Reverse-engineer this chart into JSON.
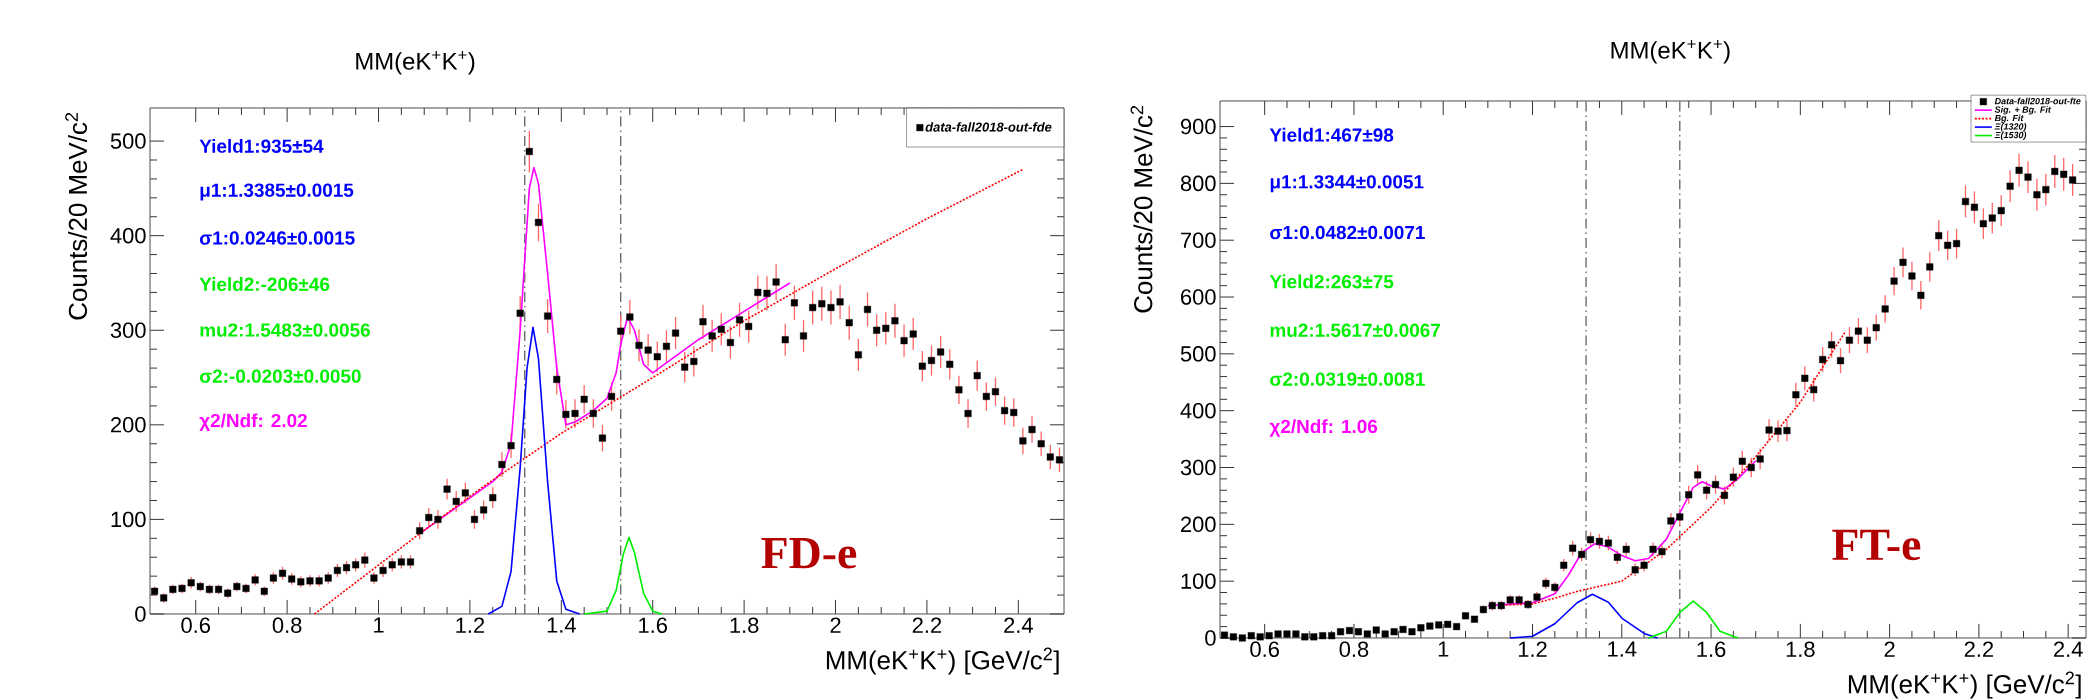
{
  "chart_data": [
    {
      "type": "scatter",
      "title": "MM(eK$^{+}$K$^{+}$)",
      "xlabel": "MM(eK$^{+}$K$^{+}$) [GeV/c$^{2}$]",
      "ylabel": "Counts/20 MeV/c$^{2}$",
      "annotations": [
        "Yield1:935±54",
        "μ1:1.3385±0.0015",
        "σ1:0.0246±0.0015",
        "Yield2:-206±46",
        "mu2:1.5483±0.0056",
        "σ2:-0.0203±0.0050",
        "χ2/Ndf: 2.02",
        "FD-e"
      ],
      "xlim": [
        0.5,
        2.5
      ],
      "ylim": [
        0,
        535
      ],
      "xticks": [
        0.6,
        0.8,
        1,
        1.2,
        1.4,
        1.6,
        1.8,
        2,
        2.2,
        2.4
      ],
      "yticks": [
        0,
        100,
        200,
        300,
        400,
        500
      ],
      "legend": "top right",
      "ref_lines": [
        {
          "axis": "x",
          "value": 1.32,
          "color": "#555555",
          "line_style": "dashed"
        },
        {
          "axis": "x",
          "value": 1.53,
          "color": "#555555",
          "line_style": "dashed"
        }
      ],
      "series": [
        {
          "name": "data-fall2018-out-fde",
          "color": "#000000",
          "marker": "square",
          "x": [
            0.51,
            0.53,
            0.55,
            0.57,
            0.59,
            0.61,
            0.63,
            0.65,
            0.67,
            0.69,
            0.71,
            0.73,
            0.75,
            0.77,
            0.79,
            0.81,
            0.83,
            0.85,
            0.87,
            0.89,
            0.91,
            0.93,
            0.95,
            0.97,
            0.99,
            1.01,
            1.03,
            1.05,
            1.07,
            1.09,
            1.11,
            1.13,
            1.15,
            1.17,
            1.19,
            1.21,
            1.23,
            1.25,
            1.27,
            1.29,
            1.31,
            1.33,
            1.35,
            1.37,
            1.39,
            1.41,
            1.43,
            1.45,
            1.47,
            1.49,
            1.51,
            1.53,
            1.55,
            1.57,
            1.59,
            1.61,
            1.63,
            1.65,
            1.67,
            1.69,
            1.71,
            1.73,
            1.75,
            1.77,
            1.79,
            1.81,
            1.83,
            1.85,
            1.87,
            1.89,
            1.91,
            1.93,
            1.95,
            1.97,
            1.99,
            2.01,
            2.03,
            2.05,
            2.07,
            2.09,
            2.11,
            2.13,
            2.15,
            2.17,
            2.19,
            2.21,
            2.23,
            2.25,
            2.27,
            2.29,
            2.31,
            2.33,
            2.35,
            2.37,
            2.39,
            2.41,
            2.43,
            2.45,
            2.47,
            2.49
          ],
          "values": [
            24,
            17,
            26,
            27,
            33,
            29,
            26,
            26,
            22,
            29,
            27,
            36,
            24,
            38,
            43,
            37,
            34,
            35,
            35,
            38,
            46,
            49,
            52,
            57,
            38,
            46,
            52,
            55,
            55,
            88,
            102,
            100,
            132,
            119,
            128,
            100,
            110,
            123,
            158,
            178,
            318,
            489,
            414,
            315,
            248,
            211,
            212,
            227,
            212,
            186,
            230,
            299,
            314,
            284,
            279,
            272,
            283,
            297,
            261,
            267,
            309,
            294,
            301,
            287,
            311,
            304,
            340,
            339,
            351,
            290,
            329,
            294,
            324,
            328,
            324,
            330,
            308,
            274,
            322,
            300,
            302,
            310,
            289,
            296,
            262,
            268,
            277,
            264,
            237,
            212,
            252,
            230,
            235,
            215,
            213,
            183,
            195,
            180,
            166,
            163
          ],
          "errors": [
            5,
            5,
            5,
            5,
            6,
            5,
            5,
            5,
            5,
            5,
            5,
            6,
            5,
            6,
            7,
            6,
            6,
            6,
            6,
            6,
            7,
            7,
            7,
            8,
            6,
            7,
            7,
            7,
            7,
            9,
            10,
            10,
            11,
            11,
            11,
            10,
            10,
            11,
            13,
            13,
            18,
            22,
            20,
            18,
            16,
            15,
            15,
            15,
            15,
            14,
            15,
            17,
            18,
            17,
            17,
            16,
            17,
            17,
            16,
            16,
            18,
            17,
            17,
            17,
            18,
            17,
            18,
            18,
            19,
            17,
            18,
            17,
            18,
            18,
            18,
            18,
            18,
            17,
            18,
            17,
            17,
            18,
            17,
            17,
            16,
            16,
            17,
            16,
            15,
            15,
            16,
            15,
            15,
            15,
            15,
            14,
            14,
            13,
            13,
            13
          ]
        },
        {
          "type": "line",
          "color": "#ff00ff",
          "line_style": "solid",
          "x": [
            1.09,
            1.25,
            1.27,
            1.29,
            1.31,
            1.33,
            1.34,
            1.35,
            1.37,
            1.39,
            1.41,
            1.43,
            1.47,
            1.5,
            1.52,
            1.53,
            1.545,
            1.56,
            1.58,
            1.6,
            1.62,
            1.7,
            1.8,
            1.9
          ],
          "values": [
            85,
            140,
            150,
            180,
            300,
            450,
            472,
            455,
            360,
            260,
            200,
            203,
            215,
            228,
            255,
            285,
            314,
            300,
            264,
            255,
            262,
            290,
            320,
            350
          ]
        },
        {
          "type": "line",
          "color": "#ff0000",
          "line_style": "dotted",
          "x": [
            0.86,
            1.09,
            1.23,
            1.4,
            1.6,
            1.8,
            2.0,
            2.2,
            2.41
          ],
          "values": [
            0,
            85,
            135,
            191,
            250,
            310,
            365,
            418,
            470
          ]
        },
        {
          "type": "line",
          "color": "#0000ff",
          "line_style": "solid",
          "x": [
            1.24,
            1.27,
            1.29,
            1.31,
            1.325,
            1.338,
            1.35,
            1.37,
            1.39,
            1.41,
            1.44
          ],
          "values": [
            0,
            8,
            45,
            155,
            260,
            303,
            270,
            140,
            35,
            5,
            0
          ]
        },
        {
          "type": "line",
          "color": "#00ee00",
          "line_style": "solid",
          "x": [
            1.45,
            1.5,
            1.52,
            1.535,
            1.548,
            1.56,
            1.58,
            1.6,
            1.62
          ],
          "values": [
            0,
            3,
            25,
            62,
            81,
            65,
            22,
            3,
            0
          ]
        }
      ]
    },
    {
      "type": "scatter",
      "title": "MM(eK$^{+}$K$^{+}$)",
      "xlabel": "MM(eK$^{+}$K$^{+}$) [GeV/c$^{2}$]",
      "ylabel": "Counts/20 MeV/c$^{2}$",
      "annotations": [
        "Yield1:467±98",
        "μ1:1.3344±0.0051",
        "σ1:0.0482±0.0071",
        "Yield2:263±75",
        "mu2:1.5617±0.0067",
        "σ2:0.0319±0.0081",
        "χ2/Ndf: 1.06",
        "FT-e"
      ],
      "xlim": [
        0.5,
        2.44
      ],
      "ylim": [
        0,
        945
      ],
      "xticks": [
        0.6,
        0.8,
        1,
        1.2,
        1.4,
        1.6,
        1.8,
        2,
        2.2,
        2.4
      ],
      "yticks": [
        0,
        100,
        200,
        300,
        400,
        500,
        600,
        700,
        800,
        900
      ],
      "legend": "top right",
      "ref_lines": [
        {
          "axis": "x",
          "value": 1.32,
          "color": "#555555",
          "line_style": "dashed"
        },
        {
          "axis": "x",
          "value": 1.53,
          "color": "#555555",
          "line_style": "dashed"
        }
      ],
      "series": [
        {
          "name": "Data-fall2018-out-fte",
          "color": "#000000",
          "marker": "square",
          "x": [
            0.51,
            0.53,
            0.55,
            0.57,
            0.59,
            0.61,
            0.63,
            0.65,
            0.67,
            0.69,
            0.71,
            0.73,
            0.75,
            0.77,
            0.79,
            0.81,
            0.83,
            0.85,
            0.87,
            0.89,
            0.91,
            0.93,
            0.95,
            0.97,
            0.99,
            1.01,
            1.03,
            1.05,
            1.07,
            1.09,
            1.11,
            1.13,
            1.15,
            1.17,
            1.19,
            1.21,
            1.23,
            1.25,
            1.27,
            1.29,
            1.31,
            1.33,
            1.35,
            1.37,
            1.39,
            1.41,
            1.43,
            1.45,
            1.47,
            1.49,
            1.51,
            1.53,
            1.55,
            1.57,
            1.59,
            1.61,
            1.63,
            1.65,
            1.67,
            1.69,
            1.71,
            1.73,
            1.75,
            1.77,
            1.79,
            1.81,
            1.83,
            1.85,
            1.87,
            1.89,
            1.91,
            1.93,
            1.95,
            1.97,
            1.99,
            2.01,
            2.03,
            2.05,
            2.07,
            2.09,
            2.11,
            2.13,
            2.15,
            2.17,
            2.19,
            2.21,
            2.23,
            2.25,
            2.27,
            2.29,
            2.31,
            2.33,
            2.35,
            2.37,
            2.39,
            2.41
          ],
          "values": [
            5,
            2,
            0,
            4,
            2,
            4,
            7,
            7,
            7,
            2,
            2,
            4,
            4,
            11,
            13,
            11,
            7,
            14,
            7,
            11,
            15,
            11,
            18,
            21,
            23,
            24,
            20,
            39,
            33,
            50,
            57,
            57,
            67,
            67,
            59,
            72,
            96,
            89,
            128,
            158,
            147,
            173,
            170,
            167,
            142,
            156,
            120,
            128,
            156,
            152,
            206,
            213,
            252,
            287,
            260,
            270,
            251,
            283,
            311,
            300,
            315,
            366,
            364,
            365,
            428,
            457,
            437,
            490,
            516,
            488,
            524,
            540,
            524,
            546,
            579,
            628,
            661,
            637,
            603,
            653,
            708,
            691,
            694,
            768,
            758,
            729,
            739,
            752,
            795,
            823,
            811,
            780,
            789,
            821,
            816,
            806
          ],
          "errors": [
            null,
            null,
            null,
            null,
            null,
            null,
            null,
            null,
            null,
            null,
            null,
            null,
            null,
            null,
            null,
            null,
            null,
            null,
            null,
            null,
            null,
            null,
            null,
            null,
            null,
            null,
            null,
            null,
            null,
            7,
            8,
            8,
            8,
            8,
            8,
            9,
            10,
            9,
            11,
            13,
            12,
            13,
            13,
            13,
            12,
            12,
            11,
            11,
            12,
            12,
            14,
            15,
            16,
            17,
            16,
            16,
            16,
            17,
            18,
            17,
            18,
            19,
            19,
            19,
            21,
            21,
            21,
            22,
            23,
            22,
            23,
            23,
            23,
            23,
            24,
            25,
            26,
            25,
            25,
            26,
            27,
            26,
            26,
            28,
            28,
            27,
            27,
            27,
            28,
            29,
            28,
            28,
            28,
            29,
            29,
            28
          ]
        },
        {
          "name": "Sig. + Bg. Fit",
          "type": "line",
          "color": "#ff00ff",
          "line_style": "solid",
          "x": [
            1.1,
            1.2,
            1.25,
            1.28,
            1.31,
            1.34,
            1.37,
            1.4,
            1.43,
            1.46,
            1.5,
            1.53,
            1.56,
            1.58,
            1.6,
            1.63,
            1.66,
            1.7
          ],
          "values": [
            57,
            62,
            78,
            110,
            150,
            166,
            160,
            145,
            136,
            140,
            174,
            220,
            265,
            275,
            268,
            262,
            280,
            312
          ]
        },
        {
          "name": "Bg. Fit",
          "type": "line",
          "color": "#ff0000",
          "line_style": "dotted",
          "x": [
            1.14,
            1.2,
            1.25,
            1.3,
            1.4,
            1.5,
            1.6,
            1.7,
            1.8,
            1.9
          ],
          "values": [
            58,
            60,
            70,
            82,
            100,
            156,
            230,
            319,
            415,
            538
          ]
        },
        {
          "name": "Ξ(1320)",
          "type": "line",
          "color": "#0000ff",
          "line_style": "solid",
          "x": [
            1.15,
            1.2,
            1.25,
            1.3,
            1.334,
            1.37,
            1.4,
            1.45,
            1.48
          ],
          "values": [
            0,
            3,
            25,
            62,
            77,
            63,
            35,
            8,
            0
          ]
        },
        {
          "name": "Ξ(1530)",
          "type": "line",
          "color": "#00ee00",
          "line_style": "solid",
          "x": [
            1.46,
            1.5,
            1.53,
            1.56,
            1.59,
            1.62,
            1.66
          ],
          "values": [
            0,
            12,
            45,
            65,
            45,
            12,
            0
          ]
        }
      ]
    }
  ]
}
